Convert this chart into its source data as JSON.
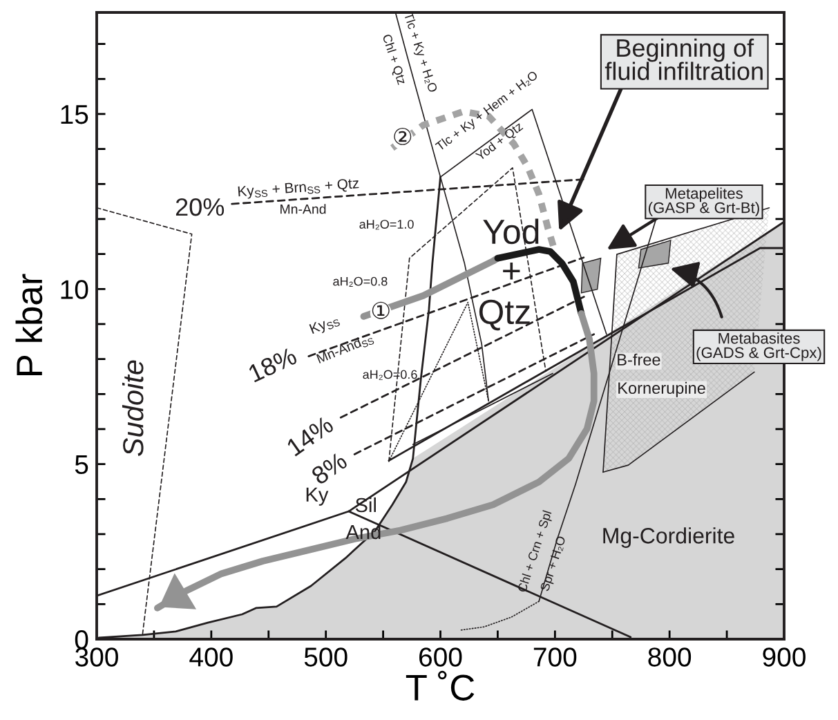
{
  "chart_data": {
    "type": "line",
    "xlabel": "T ˚C",
    "ylabel": "P kbar",
    "xlim": [
      300,
      900
    ],
    "ylim": [
      0,
      17.9
    ],
    "xticks": [
      300,
      {
        "value": 350,
        "label": null
      },
      400,
      {
        "value": 450,
        "label": null
      },
      500,
      {
        "value": 550,
        "label": null
      },
      600,
      {
        "value": 650,
        "label": null
      },
      700,
      {
        "value": 750,
        "label": null
      },
      800,
      {
        "value": 850,
        "label": null
      },
      900
    ],
    "yticks": [
      0,
      {
        "value": 1,
        "label": null
      },
      {
        "value": 2,
        "label": null
      },
      {
        "value": 3,
        "label": null
      },
      {
        "value": 4,
        "label": null
      },
      5,
      {
        "value": 6,
        "label": null
      },
      {
        "value": 7,
        "label": null
      },
      {
        "value": 8,
        "label": null
      },
      {
        "value": 9,
        "label": null
      },
      10,
      {
        "value": 11,
        "label": null
      },
      {
        "value": 12,
        "label": null
      },
      {
        "value": 13,
        "label": null
      },
      {
        "value": 14,
        "label": null
      },
      15,
      {
        "value": 16,
        "label": null
      },
      {
        "value": 17,
        "label": null
      }
    ],
    "series": [
      {
        "type": "area",
        "color": "#d6d6d6",
        "x": [
          300,
          302,
          340,
          369,
          397,
          427,
          439,
          457,
          487,
          517,
          543,
          558,
          570,
          576,
          900,
          900,
          300
        ],
        "values": [
          0,
          0.04,
          0.12,
          0.22,
          0.47,
          0.71,
          0.89,
          0.93,
          1.52,
          2.31,
          3.09,
          3.84,
          4.49,
          5.16,
          11.92,
          0,
          0
        ]
      },
      {
        "type": "area",
        "color": "#a6a6a6",
        "x": [
          724,
          740,
          737,
          723
        ],
        "values": [
          10.74,
          10.88,
          9.99,
          9.89
        ]
      },
      {
        "type": "area",
        "color": "#a6a6a6",
        "x": [
          775,
          801,
          799,
          773
        ],
        "values": [
          11.13,
          11.39,
          10.74,
          10.6
        ]
      },
      {
        "color": "#231f20",
        "line_style": "solid",
        "x": [
          300,
          520,
          900
        ],
        "values": [
          1.24,
          3.65,
          11.92
        ]
      },
      {
        "color": "#231f20",
        "line_style": "solid",
        "x": [
          520,
          766
        ],
        "values": [
          3.65,
          0.06
        ]
      },
      {
        "color": "#231f20",
        "line_style": "solid",
        "x": [
          555,
          879,
          900
        ],
        "values": [
          5.1,
          11.17,
          11.17
        ]
      },
      {
        "color": "#231f20",
        "line_style": "solid",
        "x": [
          576,
          698
        ],
        "values": [
          5.56,
          7.59
        ]
      },
      {
        "color": "#231f20",
        "line_style": "solid",
        "x": [
          302,
          340,
          369,
          397,
          427,
          439,
          457,
          487,
          517,
          543,
          558,
          570,
          576,
          579,
          583,
          590,
          593,
          600
        ],
        "values": [
          0.04,
          0.12,
          0.22,
          0.47,
          0.71,
          0.89,
          0.93,
          1.52,
          2.31,
          3.09,
          3.84,
          4.49,
          5.16,
          6.15,
          7.45,
          9.42,
          10.74,
          13.2
        ]
      },
      {
        "color": "#231f20",
        "line_style": "solid",
        "x": [
          561,
          571,
          600,
          621,
          636,
          642
        ],
        "values": [
          17.87,
          16.65,
          13.2,
          10.74,
          8.43,
          6.8
        ]
      },
      {
        "color": "#231f20",
        "line_style": "solid",
        "x": [
          600,
          680,
          745
        ],
        "values": [
          13.2,
          15.13,
          8.71
        ]
      },
      {
        "color": "#231f20",
        "line_style": "dashed",
        "x": [
          418,
          728
        ],
        "values": [
          12.43,
          13.14
        ]
      },
      {
        "color": "#231f20",
        "line_style": "dashed",
        "x": [
          485,
          725
        ],
        "values": [
          8.08,
          10.9
        ]
      },
      {
        "color": "#231f20",
        "line_style": "dashed",
        "x": [
          513,
          726
        ],
        "values": [
          6.33,
          9.79
        ]
      },
      {
        "color": "#231f20",
        "line_style": "dashed",
        "x": [
          525,
          734
        ],
        "values": [
          5.28,
          8.71
        ]
      },
      {
        "color": "#231f20",
        "line_style": "dashed",
        "x": [
          555,
          573,
          663,
          692
        ],
        "values": [
          5.08,
          10.88,
          13.46,
          7.65
        ]
      },
      {
        "color": "#231f20",
        "line_style": "dotted",
        "x": [
          555,
          624,
          642
        ],
        "values": [
          5.08,
          9.62,
          6.8
        ]
      },
      {
        "color": "#231f20",
        "line_style": "dashed",
        "x": [
          300,
          383,
          340
        ],
        "values": [
          12.32,
          11.57,
          0.14
        ]
      },
      {
        "color": "#231f20",
        "line_style": "solid",
        "x": [
          788,
          718,
          702,
          686
        ],
        "values": [
          11.98,
          4.43,
          2.86,
          1.08
        ]
      },
      {
        "color": "#231f20",
        "line_style": "dotted",
        "x": [
          686,
          662,
          638,
          618
        ],
        "values": [
          1.08,
          0.63,
          0.35,
          0.26
        ]
      },
      {
        "color": "#231f20",
        "line_style": "solid",
        "x": [
          742,
          754,
          887
        ],
        "values": [
          4.77,
          10.99,
          12.32
        ]
      },
      {
        "color": "#939393",
        "line_style": "solid",
        "x": [
          533,
          585,
          646,
          650
        ],
        "values": [
          9.22,
          9.81,
          10.8,
          10.88
        ]
      },
      {
        "color": "#1a1a1a",
        "line_style": "solid",
        "x": [
          650,
          686,
          696,
          706,
          716,
          723
        ],
        "values": [
          10.88,
          11.13,
          11.07,
          10.74,
          10.21,
          9.3
        ]
      },
      {
        "color": "#939393",
        "line_style": "solid",
        "x": [
          723,
          730,
          734,
          734,
          728,
          712,
          686,
          646,
          606,
          565,
          525,
          487,
          445,
          409,
          378,
          353
        ],
        "values": [
          9.3,
          8.57,
          7.59,
          6.8,
          6.01,
          5.16,
          4.49,
          3.84,
          3.45,
          3.11,
          2.86,
          2.56,
          2.23,
          1.87,
          1.38,
          0.89
        ]
      },
      {
        "color": "#a3a3a3",
        "line_style": "dashed",
        "x": [
          558,
          585,
          620,
          642,
          664,
          676,
          686,
          694,
          700
        ],
        "values": [
          14.03,
          14.68,
          15.07,
          14.94,
          14.15,
          13.5,
          12.71,
          11.72,
          11.07
        ]
      },
      {
        "color": "#231f20",
        "line_style": "solid",
        "x": [
          742,
          764,
          874
        ],
        "values": [
          4.77,
          4.97,
          7.63
        ]
      }
    ],
    "annotations": [
      "Tlc + Ky + H₂O",
      "Chl + Qtz",
      "Tlc + Ky + Hem + H₂O",
      "Yod + Qtz",
      "Ky$_{SS}$ + Brn$_{SS}$ + Qtz",
      "Mn-And",
      "20%",
      "aH₂O=1.0",
      "aH₂O=0.8",
      "①",
      "②",
      "Ky$_{SS}$",
      "Mn-And$_{SS}$",
      "18%",
      "aH₂O=0.6",
      "14%",
      "8%",
      "Sudoite",
      "Ky",
      "Sil",
      "And",
      "Yod",
      "+",
      "Qtz",
      "Mg-Cordierite",
      "B-free",
      "Kornerupine",
      "Chl + Crn + Spl",
      "Spr + H₂O",
      "Beginning of\nfluid infiltration",
      "Metapelites\n(GASP & Grt-Bt)",
      "Metabasites\n(GADS & Grt-Cpx)"
    ]
  }
}
